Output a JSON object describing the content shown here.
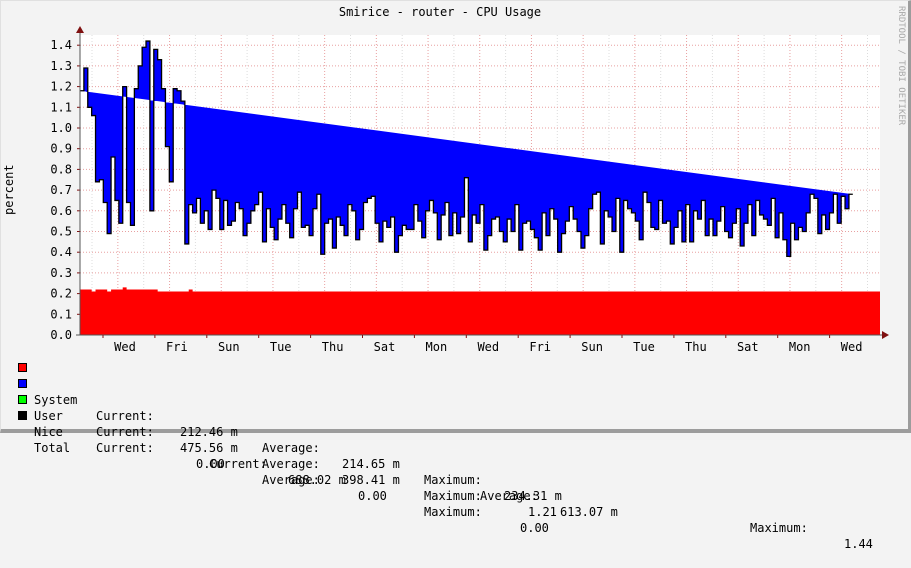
{
  "title": "Smirice - router - CPU Usage",
  "watermark": "RRDTOOL / TOBI OETIKER",
  "colors": {
    "system": "#ff0000",
    "user": "#0000ff",
    "nice": "#00ff00",
    "total": "#000000",
    "grid_major": "#e8a0a0",
    "grid_minor": "#dcdcdc",
    "axis": "#7f1010",
    "background": "#f3f3f3",
    "plot_background": "#ffffff"
  },
  "legend": [
    {
      "name": "System",
      "color": "#ff0000",
      "current_label": "Current:",
      "current": "212.46 m",
      "average_label": "Average:",
      "average": "214.65 m",
      "maximum_label": "Maximum:",
      "maximum": "234.31 m"
    },
    {
      "name": "User",
      "color": "#0000ff",
      "current_label": "Current:",
      "current": "475.56 m",
      "average_label": "Average:",
      "average": "398.41 m",
      "maximum_label": "Maximum:",
      "maximum": "1.21"
    },
    {
      "name": "Nice",
      "color": "#00ff00",
      "current_label": "Current:",
      "current": "0.00",
      "average_label": "Average:",
      "average": "0.00",
      "maximum_label": "Maximum:",
      "maximum": "0.00"
    },
    {
      "name": "Total",
      "color": "#000000",
      "current_label": "Current:",
      "current": "688.02 m",
      "average_label": "Average:",
      "average": "613.07 m",
      "maximum_label": "Maximum:",
      "maximum": "1.44"
    }
  ],
  "chart_data": {
    "type": "area",
    "title": "Smirice - router - CPU Usage",
    "xlabel": "",
    "ylabel": "percent",
    "ylim": [
      0.0,
      1.45
    ],
    "yticks": [
      "0.0",
      "0.1",
      "0.2",
      "0.3",
      "0.4",
      "0.5",
      "0.6",
      "0.7",
      "0.8",
      "0.9",
      "1.0",
      "1.1",
      "1.2",
      "1.3",
      "1.4"
    ],
    "xticks": [
      "Wed",
      "Fri",
      "Sun",
      "Tue",
      "Thu",
      "Sat",
      "Mon",
      "Wed",
      "Fri",
      "Sun",
      "Tue",
      "Thu",
      "Sat",
      "Mon",
      "Wed"
    ],
    "stacked": true,
    "grid": true,
    "legend_position": "bottom",
    "series": [
      {
        "name": "System",
        "color": "#ff0000",
        "values": [
          0.22,
          0.22,
          0.22,
          0.21,
          0.22,
          0.22,
          0.22,
          0.21,
          0.22,
          0.22,
          0.22,
          0.23,
          0.22,
          0.22,
          0.22,
          0.22,
          0.22,
          0.22,
          0.22,
          0.22,
          0.21,
          0.21,
          0.21,
          0.21,
          0.21,
          0.21,
          0.21,
          0.21,
          0.22,
          0.21,
          0.21,
          0.21,
          0.21,
          0.21,
          0.21,
          0.21,
          0.21,
          0.21,
          0.21,
          0.21,
          0.21,
          0.21,
          0.21,
          0.21,
          0.21,
          0.21,
          0.21,
          0.21,
          0.21,
          0.21,
          0.21,
          0.21,
          0.21,
          0.21,
          0.21,
          0.21,
          0.21,
          0.21,
          0.21,
          0.21,
          0.21,
          0.21,
          0.21,
          0.21,
          0.21,
          0.21,
          0.21,
          0.21,
          0.21,
          0.21,
          0.21,
          0.21,
          0.21,
          0.21,
          0.21,
          0.21,
          0.21,
          0.21,
          0.21,
          0.21,
          0.21,
          0.21,
          0.21,
          0.21,
          0.21,
          0.21,
          0.21,
          0.21,
          0.21,
          0.21,
          0.21,
          0.21,
          0.21,
          0.21,
          0.21,
          0.21,
          0.21,
          0.21,
          0.21,
          0.21,
          0.21,
          0.21,
          0.21,
          0.21,
          0.21,
          0.21,
          0.21,
          0.21,
          0.21,
          0.21,
          0.21,
          0.21,
          0.21,
          0.21,
          0.21,
          0.21,
          0.21,
          0.21,
          0.21,
          0.21,
          0.21,
          0.21,
          0.21,
          0.21,
          0.21,
          0.21,
          0.21,
          0.21,
          0.21,
          0.21,
          0.21,
          0.21,
          0.21,
          0.21,
          0.21,
          0.21,
          0.21,
          0.21,
          0.21,
          0.21,
          0.21,
          0.21,
          0.21,
          0.21,
          0.21,
          0.21,
          0.21,
          0.21,
          0.21,
          0.21,
          0.21,
          0.21,
          0.21,
          0.21,
          0.21,
          0.21,
          0.21,
          0.21,
          0.21,
          0.21,
          0.21,
          0.21,
          0.21,
          0.21,
          0.21,
          0.21,
          0.21,
          0.21,
          0.21,
          0.21,
          0.21,
          0.21,
          0.21,
          0.21,
          0.21,
          0.21,
          0.21,
          0.21,
          0.21,
          0.21,
          0.21,
          0.21,
          0.21,
          0.21,
          0.21,
          0.21,
          0.21,
          0.21,
          0.21,
          0.21,
          0.21,
          0.21,
          0.21,
          0.21,
          0.21,
          0.21,
          0.21,
          0.21,
          0.21,
          0.21,
          0.21,
          0.21,
          0.21,
          0.21,
          0.21,
          0.21
        ]
      },
      {
        "name": "User",
        "color": "#0000ff",
        "values": [
          0.96,
          1.07,
          0.88,
          0.85,
          0.52,
          0.53,
          0.42,
          0.28,
          0.64,
          0.43,
          0.32,
          0.97,
          0.42,
          0.31,
          0.97,
          1.08,
          1.17,
          1.2,
          0.38,
          1.16,
          1.12,
          0.98,
          0.7,
          0.53,
          0.98,
          0.97,
          0.92,
          0.23,
          0.41,
          0.38,
          0.45,
          0.33,
          0.39,
          0.3,
          0.49,
          0.45,
          0.3,
          0.44,
          0.32,
          0.34,
          0.43,
          0.4,
          0.27,
          0.33,
          0.39,
          0.42,
          0.48,
          0.24,
          0.4,
          0.31,
          0.25,
          0.35,
          0.42,
          0.33,
          0.26,
          0.4,
          0.48,
          0.31,
          0.32,
          0.27,
          0.4,
          0.47,
          0.18,
          0.33,
          0.35,
          0.21,
          0.36,
          0.32,
          0.27,
          0.42,
          0.39,
          0.25,
          0.3,
          0.43,
          0.45,
          0.46,
          0.33,
          0.24,
          0.34,
          0.31,
          0.36,
          0.19,
          0.27,
          0.32,
          0.3,
          0.3,
          0.42,
          0.34,
          0.26,
          0.39,
          0.44,
          0.38,
          0.25,
          0.37,
          0.43,
          0.27,
          0.38,
          0.28,
          0.36,
          0.55,
          0.24,
          0.37,
          0.33,
          0.42,
          0.2,
          0.27,
          0.35,
          0.36,
          0.29,
          0.24,
          0.35,
          0.29,
          0.42,
          0.2,
          0.33,
          0.34,
          0.3,
          0.26,
          0.2,
          0.38,
          0.27,
          0.4,
          0.35,
          0.19,
          0.28,
          0.34,
          0.41,
          0.35,
          0.29,
          0.21,
          0.27,
          0.4,
          0.47,
          0.48,
          0.23,
          0.39,
          0.36,
          0.29,
          0.45,
          0.19,
          0.44,
          0.4,
          0.38,
          0.34,
          0.25,
          0.48,
          0.43,
          0.31,
          0.3,
          0.44,
          0.33,
          0.34,
          0.23,
          0.31,
          0.39,
          0.24,
          0.42,
          0.24,
          0.39,
          0.35,
          0.44,
          0.27,
          0.35,
          0.27,
          0.34,
          0.41,
          0.29,
          0.26,
          0.33,
          0.4,
          0.22,
          0.33,
          0.42,
          0.27,
          0.44,
          0.37,
          0.35,
          0.32,
          0.45,
          0.26,
          0.38,
          0.25,
          0.17,
          0.33,
          0.25,
          0.31,
          0.29,
          0.38,
          0.47,
          0.45,
          0.28,
          0.37,
          0.3,
          0.38,
          0.47,
          0.33,
          0.46,
          0.4,
          0.47
        ]
      }
    ],
    "summary": {
      "System": {
        "current": "212.46 m",
        "average": "214.65 m",
        "maximum": "234.31 m"
      },
      "User": {
        "current": "475.56 m",
        "average": "398.41 m",
        "maximum": "1.21"
      },
      "Nice": {
        "current": "0.00",
        "average": "0.00",
        "maximum": "0.00"
      },
      "Total": {
        "current": "688.02 m",
        "average": "613.07 m",
        "maximum": "1.44"
      }
    }
  }
}
